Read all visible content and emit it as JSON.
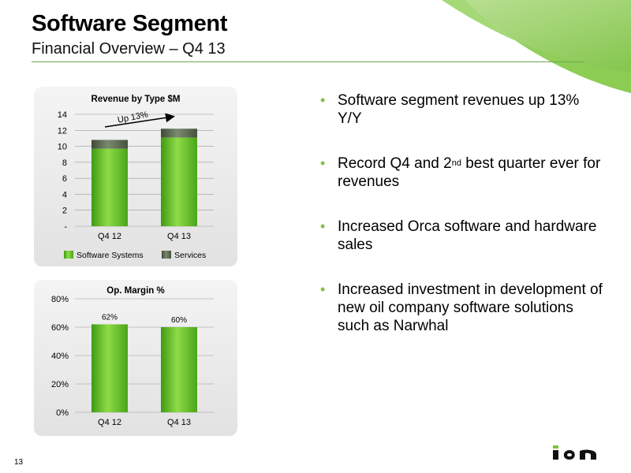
{
  "header": {
    "title": "Software Segment",
    "subtitle": "Financial Overview – Q4 13"
  },
  "bullets": [
    {
      "text": "Software segment revenues up 13% Y/Y"
    },
    {
      "pre": "Record Q4 and 2",
      "sup": "nd",
      "post": " best quarter ever for revenues"
    },
    {
      "text": "Increased Orca software and hardware sales"
    },
    {
      "text": "Increased investment in development of new oil company software solutions such as Narwhal"
    }
  ],
  "footer": {
    "page_number": "13",
    "logo_text": "ION"
  },
  "colors": {
    "accent_green": "#7cc242",
    "bar_green": "#5bb526",
    "services_gray": "#5a6a52"
  },
  "chart_data": [
    {
      "type": "bar",
      "stacked": true,
      "title": "Revenue by Type $M",
      "categories": [
        "Q4 12",
        "Q4 13"
      ],
      "series": [
        {
          "name": "Software Systems",
          "values": [
            9.7,
            11.1
          ]
        },
        {
          "name": "Services",
          "values": [
            1.1,
            1.1
          ]
        }
      ],
      "ylim": [
        0,
        14
      ],
      "yticks": [
        0,
        2,
        4,
        6,
        8,
        10,
        12,
        14
      ],
      "ytick_labels": [
        "-",
        "2",
        "4",
        "6",
        "8",
        "10",
        "12",
        "14"
      ],
      "annotation": "Up 13%",
      "legend": "bottom",
      "grid": true
    },
    {
      "type": "bar",
      "title": "Op. Margin %",
      "categories": [
        "Q4 12",
        "Q4 13"
      ],
      "values": [
        62,
        60
      ],
      "data_labels": [
        "62%",
        "60%"
      ],
      "ylim": [
        0,
        80
      ],
      "yticks": [
        0,
        20,
        40,
        60,
        80
      ],
      "ytick_labels": [
        "0%",
        "20%",
        "40%",
        "60%",
        "80%"
      ],
      "grid": true
    }
  ]
}
